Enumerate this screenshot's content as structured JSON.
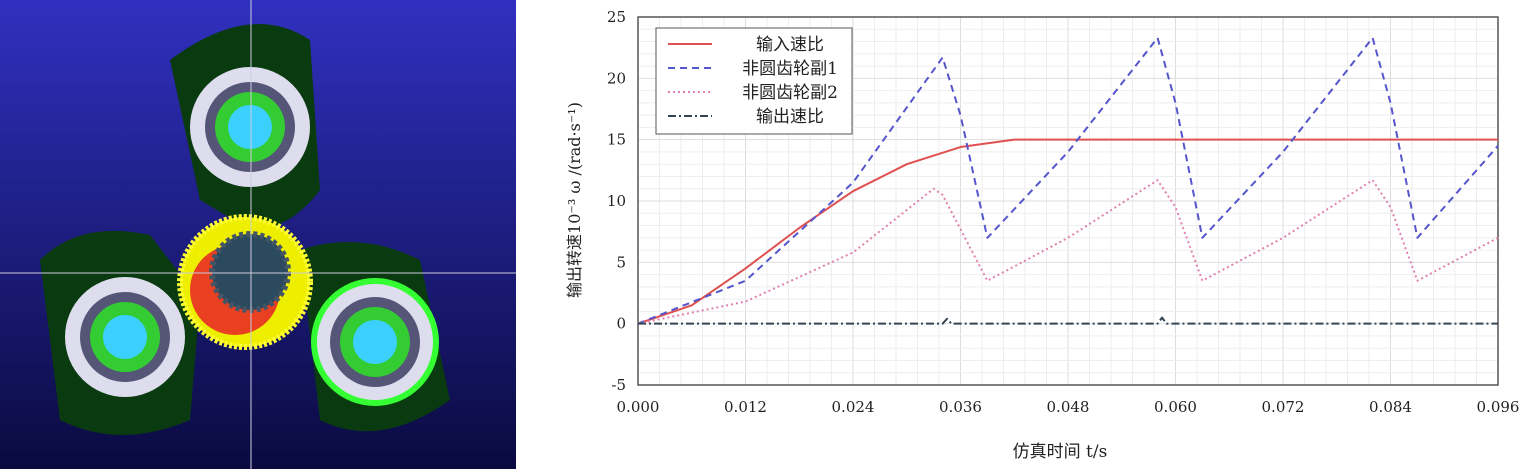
{
  "simulation_view": {
    "description_icon": "gear-train-3d-render",
    "background": "#2a2ab8"
  },
  "chart_data": {
    "type": "line",
    "xlabel": "仿真时间 t/s",
    "ylabel": "输出转速10⁻³ ω /(rad·s⁻¹)",
    "xlim": [
      0,
      0.096
    ],
    "ylim": [
      -5,
      25
    ],
    "xticks": [
      "0.000",
      "0.012",
      "0.024",
      "0.036",
      "0.048",
      "0.060",
      "0.072",
      "0.084",
      "0.096"
    ],
    "yticks": [
      "-5",
      "0",
      "5",
      "10",
      "15",
      "20",
      "25"
    ],
    "grid": true,
    "legend_position": "top-left",
    "series": [
      {
        "name": "输入速比",
        "color": "#e05050",
        "style": "solid",
        "x": [
          0,
          0.006,
          0.012,
          0.018,
          0.024,
          0.03,
          0.036,
          0.042,
          0.096
        ],
        "y": [
          0,
          1.5,
          4.5,
          7.8,
          10.8,
          13,
          14.4,
          15,
          15
        ]
      },
      {
        "name": "非圆齿轮副1",
        "color": "#5555cc",
        "style": "dashed",
        "x": [
          0,
          0.012,
          0.024,
          0.034,
          0.036,
          0.039,
          0.048,
          0.058,
          0.06,
          0.063,
          0.072,
          0.082,
          0.084,
          0.087,
          0.096
        ],
        "y": [
          0,
          3.5,
          11.5,
          21.7,
          17,
          7,
          14,
          23.3,
          18,
          7,
          14,
          23.3,
          18,
          7,
          14.5
        ]
      },
      {
        "name": "非圆齿轮副2",
        "color": "#e080b0",
        "style": "dotted",
        "x": [
          0,
          0.012,
          0.024,
          0.033,
          0.034,
          0.039,
          0.048,
          0.058,
          0.06,
          0.063,
          0.072,
          0.082,
          0.084,
          0.087,
          0.096
        ],
        "y": [
          0,
          1.8,
          5.8,
          11,
          10.5,
          3.5,
          7,
          11.7,
          9.5,
          3.5,
          7,
          11.7,
          9.5,
          3.5,
          7
        ]
      },
      {
        "name": "输出速比",
        "color": "#334455",
        "style": "dashdot",
        "x": [
          0,
          0.034,
          0.0345,
          0.035,
          0.058,
          0.0585,
          0.059,
          0.096
        ],
        "y": [
          0,
          0,
          0.4,
          0,
          0,
          0.5,
          0,
          0
        ]
      }
    ]
  }
}
